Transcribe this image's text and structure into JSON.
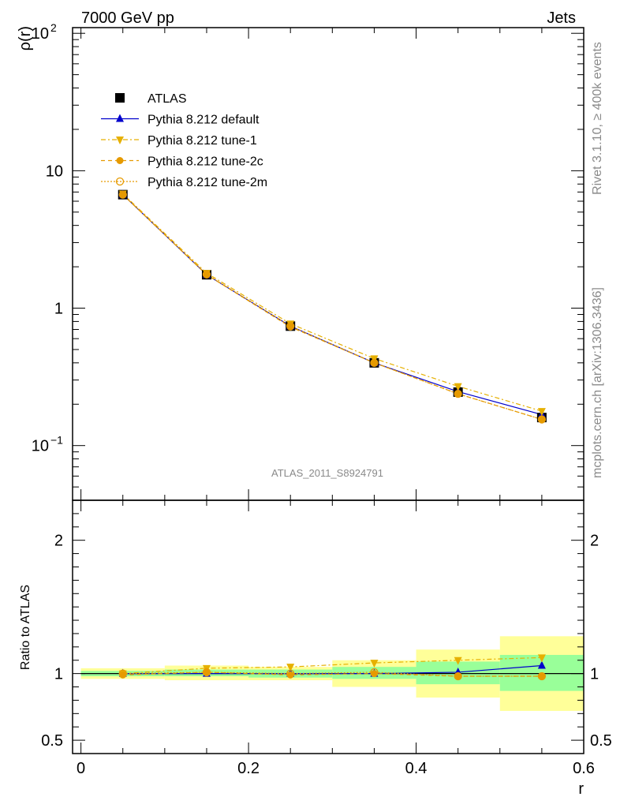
{
  "header": {
    "process": "7000 GeV pp",
    "observable": "Jets",
    "analysis_label": "ATLAS_2011_S8924791"
  },
  "sidebar": {
    "rivet": "Rivet 3.1.10, ≥ 400k events",
    "mcplots": "mcplots.cern.ch [arXiv:1306.3436]"
  },
  "chart_data": [
    {
      "type": "line",
      "title": "7000 GeV pp Jets",
      "xlabel": "r",
      "ylabel": "ρ(r)",
      "yscale": "log",
      "xlim": [
        -0.01,
        0.6
      ],
      "ylim": [
        0.04,
        110
      ],
      "yticks": [
        {
          "value": 0.1,
          "base": "10",
          "exp": "−1"
        },
        {
          "value": 1,
          "base": "1",
          "exp": ""
        },
        {
          "value": 10,
          "base": "10",
          "exp": ""
        },
        {
          "value": 100,
          "base": "10",
          "exp": "2"
        }
      ],
      "x": [
        0.05,
        0.15,
        0.25,
        0.35,
        0.45,
        0.55
      ],
      "series": [
        {
          "name": "ATLAS",
          "values": [
            6.7,
            1.75,
            0.74,
            0.4,
            0.245,
            0.16
          ],
          "color": "#000000",
          "marker": "square"
        },
        {
          "name": "Pythia 8.212 default",
          "values": [
            6.7,
            1.75,
            0.74,
            0.4,
            0.247,
            0.168
          ],
          "color": "#0000cc",
          "marker": "triangle-up"
        },
        {
          "name": "Pythia 8.212 tune-1",
          "values": [
            6.8,
            1.8,
            0.77,
            0.43,
            0.27,
            0.178
          ],
          "color": "#e6b000",
          "marker": "triangle-down"
        },
        {
          "name": "Pythia 8.212 tune-2c",
          "values": [
            6.7,
            1.75,
            0.73,
            0.4,
            0.238,
            0.155
          ],
          "color": "#e69a00",
          "marker": "circle"
        },
        {
          "name": "Pythia 8.212 tune-2m",
          "values": [
            6.7,
            1.76,
            0.74,
            0.4,
            0.238,
            0.155
          ],
          "color": "#e69a00",
          "marker": "circle-open"
        }
      ]
    },
    {
      "type": "line",
      "title": "Ratio",
      "xlabel": "r",
      "ylabel": "Ratio to ATLAS",
      "xlim": [
        -0.01,
        0.6
      ],
      "ylim": [
        0.4,
        2.3
      ],
      "xticks": [
        {
          "value": 0,
          "label": "0"
        },
        {
          "value": 0.2,
          "label": "0.2"
        },
        {
          "value": 0.4,
          "label": "0.4"
        },
        {
          "value": 0.6,
          "label": "0.6"
        }
      ],
      "yticks": [
        {
          "value": 0.5,
          "label": "0.5"
        },
        {
          "value": 1,
          "label": "1"
        },
        {
          "value": 2,
          "label": "2"
        }
      ],
      "bins": [
        [
          0.0,
          0.1
        ],
        [
          0.1,
          0.2
        ],
        [
          0.2,
          0.3
        ],
        [
          0.3,
          0.4
        ],
        [
          0.4,
          0.5
        ],
        [
          0.5,
          0.6
        ]
      ],
      "band_outer": [
        [
          0.96,
          1.04
        ],
        [
          0.95,
          1.06
        ],
        [
          0.95,
          1.05
        ],
        [
          0.9,
          1.1
        ],
        [
          0.82,
          1.18
        ],
        [
          0.72,
          1.28
        ]
      ],
      "band_inner": [
        [
          0.98,
          1.02
        ],
        [
          0.98,
          1.03
        ],
        [
          0.97,
          1.03
        ],
        [
          0.96,
          1.05
        ],
        [
          0.92,
          1.09
        ],
        [
          0.87,
          1.14
        ]
      ],
      "x": [
        0.05,
        0.15,
        0.25,
        0.35,
        0.45,
        0.55
      ],
      "series": [
        {
          "name": "Pythia 8.212 default",
          "values": [
            1.0,
            1.0,
            1.0,
            1.0,
            1.01,
            1.06
          ],
          "color": "#0000cc",
          "marker": "triangle-up"
        },
        {
          "name": "Pythia 8.212 tune-1",
          "values": [
            1.0,
            1.04,
            1.05,
            1.08,
            1.1,
            1.12
          ],
          "color": "#e6b000",
          "marker": "triangle-down"
        },
        {
          "name": "Pythia 8.212 tune-2c",
          "values": [
            0.99,
            1.01,
            0.99,
            1.0,
            0.98,
            0.98
          ],
          "color": "#e69a00",
          "marker": "circle"
        },
        {
          "name": "Pythia 8.212 tune-2m",
          "values": [
            1.0,
            1.01,
            1.0,
            1.01,
            0.98,
            0.98
          ],
          "color": "#e69a00",
          "marker": "circle-open"
        }
      ]
    }
  ]
}
